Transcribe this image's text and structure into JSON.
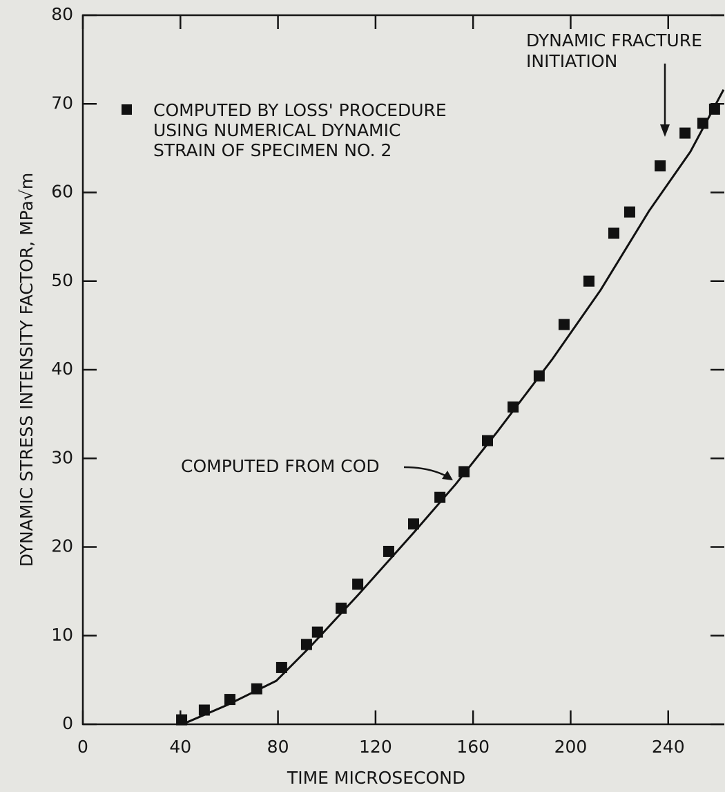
{
  "chart_data": {
    "type": "scatter",
    "x_label": "TIME MICROSECOND",
    "y_label": "DYNAMIC STRESS INTENSITY FACTOR, MPa√m",
    "xlim": [
      0,
      263
    ],
    "xticks": [
      0,
      40,
      80,
      120,
      160,
      200,
      240
    ],
    "ylim": [
      0,
      80
    ],
    "yticks": [
      0,
      10,
      20,
      30,
      40,
      50,
      60,
      70,
      80
    ],
    "legend_lines": [
      "COMPUTED BY LOSS' PROCEDURE",
      "USING NUMERICAL DYNAMIC",
      "STRAIN OF SPECIMEN NO. 2"
    ],
    "annotations": [
      {
        "lines": [
          "COMPUTED FROM COD"
        ]
      },
      {
        "lines": [
          "DYNAMIC FRACTURE",
          "INITIATION"
        ]
      }
    ],
    "series": [
      {
        "kind": "line",
        "color": "#111111",
        "x": [
          42.5,
          59.4,
          79.3,
          93.4,
          113.2,
          135.9,
          152.9,
          169.9,
          192.5,
          212.3,
          232.1,
          249.1,
          262.7
        ],
        "values": [
          0.2,
          2.2,
          4.9,
          8.8,
          14.7,
          21.7,
          27.1,
          33.0,
          41.2,
          49.0,
          57.9,
          64.6,
          71.6
        ]
      },
      {
        "kind": "points",
        "marker": "square",
        "color": "#111111",
        "x": [
          40.5,
          49.8,
          60.3,
          71.3,
          81.5,
          91.7,
          96.2,
          105.9,
          112.7,
          125.4,
          135.6,
          146.4,
          156.3,
          165.9,
          176.4,
          187.1,
          197.3,
          207.5,
          217.7,
          224.2,
          236.7,
          246.9,
          254.2,
          259.0
        ],
        "values": [
          0.5,
          1.6,
          2.8,
          4.0,
          6.4,
          9.0,
          10.4,
          13.1,
          15.8,
          19.5,
          22.6,
          25.6,
          28.5,
          32.0,
          35.8,
          39.3,
          45.1,
          50.0,
          55.4,
          57.8,
          63.0,
          66.7,
          67.8,
          69.4
        ]
      }
    ]
  }
}
